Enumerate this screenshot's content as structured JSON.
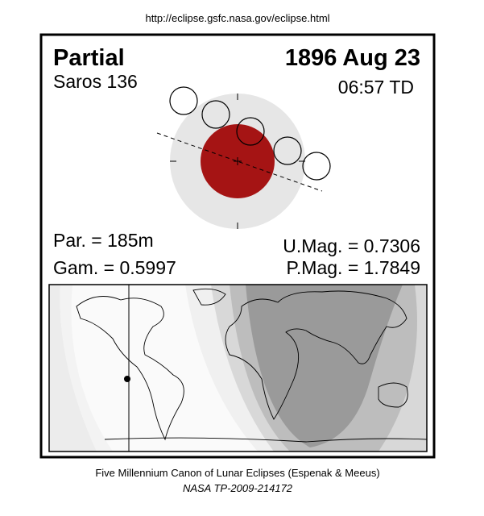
{
  "header": {
    "url": "http://eclipse.gsfc.nasa.gov/eclipse.html"
  },
  "eclipse": {
    "type": "Partial",
    "date": "1896 Aug 23",
    "saros": "Saros 136",
    "time": "06:57 TD"
  },
  "parameters": {
    "par": "Par. = 185m",
    "gam": "Gam. = 0.5997",
    "umag": "U.Mag. = 0.7306",
    "pmag": "P.Mag. = 1.7849"
  },
  "footer": {
    "line1": "Five Millennium Canon of Lunar Eclipses (Espenak & Meeus)",
    "line2": "NASA TP-2009-214172"
  }
}
